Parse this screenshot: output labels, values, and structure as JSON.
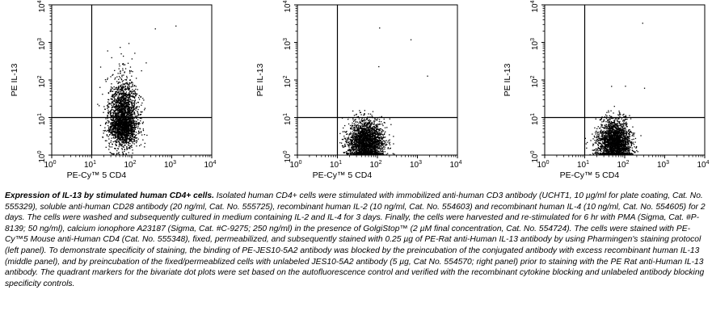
{
  "chart_data": [
    {
      "type": "scatter",
      "panel": "left",
      "xlabel": "PE-Cy™ 5 CD4",
      "ylabel": "PE IL-13",
      "xscale": "log",
      "yscale": "log",
      "xlim": [
        1,
        10000
      ],
      "ylim": [
        1,
        10000
      ],
      "quadrant_marker": {
        "x": 10,
        "y": 10
      },
      "population": {
        "center_x": 60,
        "center_y": 8,
        "spread_x": 0.18,
        "spread_y_low": 0.32,
        "spread_y_high": 0.55,
        "n": 2600
      }
    },
    {
      "type": "scatter",
      "panel": "middle",
      "xlabel": "PE-Cy™ 5 CD4",
      "ylabel": "PE IL-13",
      "xscale": "log",
      "yscale": "log",
      "xlim": [
        1,
        10000
      ],
      "ylim": [
        1,
        10000
      ],
      "quadrant_marker": {
        "x": 10,
        "y": 10
      },
      "population": {
        "center_x": 50,
        "center_y": 2.2,
        "spread_x": 0.22,
        "spread_y_low": 0.28,
        "spread_y_high": 0.3,
        "n": 2300
      }
    },
    {
      "type": "scatter",
      "panel": "right",
      "xlabel": "PE-Cy™ 5 CD4",
      "ylabel": "PE IL-13",
      "xscale": "log",
      "yscale": "log",
      "xlim": [
        1,
        10000
      ],
      "ylim": [
        1,
        10000
      ],
      "quadrant_marker": {
        "x": 10,
        "y": 10
      },
      "population": {
        "center_x": 55,
        "center_y": 2.2,
        "spread_x": 0.2,
        "spread_y_low": 0.28,
        "spread_y_high": 0.3,
        "n": 2300
      }
    }
  ],
  "ticks": {
    "bases": [
      "10",
      "10",
      "10",
      "10",
      "10"
    ],
    "exponents": [
      "0",
      "1",
      "2",
      "3",
      "4"
    ]
  },
  "caption": {
    "lead": "Expression of IL-13 by stimulated human CD4+ cells.",
    "body": " Isolated human CD4+ cells were stimulated with immobilized anti-human CD3 antibody (UCHT1, 10 µg/ml for plate coating, Cat. No. 555329), soluble anti-human CD28 antibody (20 ng/ml, Cat. No. 555725), recombinant human IL-2 (10 ng/ml, Cat. No. 554603) and recombinant human IL-4 (10 ng/ml, Cat. No. 554605) for 2 days. The cells were washed and subsequently cultured in medium containing IL-2 and IL-4 for 3 days. Finally, the cells were harvested and re-stimulated for 6 hr with PMA (Sigma, Cat. #P-8139; 50 ng/ml), calcium ionophore A23187 (Sigma, Cat. #C-9275; 250 ng/ml) in the presence of GolgiStop™ (2 µM final concentration, Cat. No. 554724). The cells were stained with PE-Cy™5 Mouse anti-Human CD4 (Cat. No. 555348), fixed, permeabilized, and subsequently stained with 0.25 µg of PE-Rat anti-Human IL-13 antibody by using Pharmingen's staining protocol (left panel). To demonstrate specificity of staining, the binding of PE-JES10-5A2 antibody was blocked by the preincubation of the conjugated antibody with excess recombinant human IL-13 (middle panel), and by preincubation of the fixed/permeablized cells with unlabeled JES10-5A2 antibody (5 µg, Cat No. 554570; right panel) prior to staining with the PE Rat anti-Human IL-13 antibody. The quadrant markers for the bivariate dot plots were set based on the autofluorescence control and verified with the recombinant cytokine blocking and unlabeled antibody blocking specificity controls."
  },
  "colors": {
    "dots": "#000000",
    "axis": "#000000",
    "background": "#ffffff"
  }
}
